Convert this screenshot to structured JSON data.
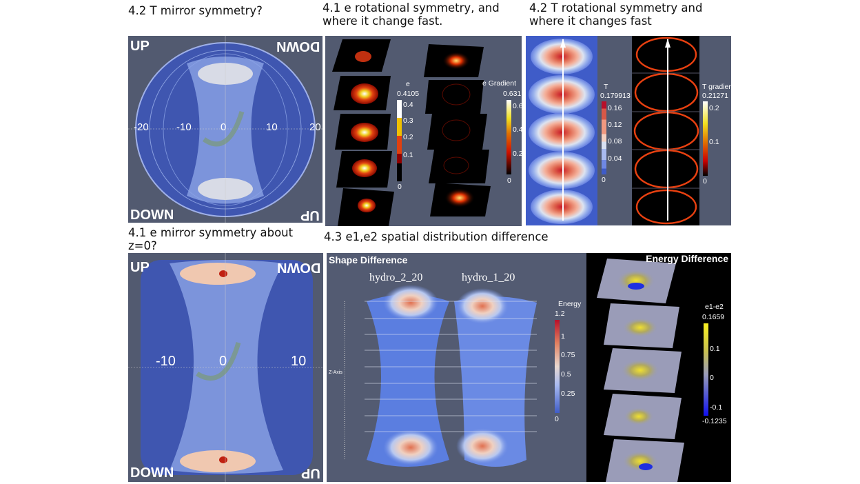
{
  "titles": {
    "t_mirror": "4.2 T mirror symmetry?",
    "e_rot": "4.1 e rotational symmetry, and where it change fast.",
    "t_rot": "4.2 T rotational symmetry and where it changes fast",
    "e_mirror": "4.1 e mirror symmetry about z=0?",
    "diff": "4.3 e1,e2 spatial distribution difference"
  },
  "t_mirror_panel": {
    "up": "UP",
    "down_mirrored": "DOWN",
    "down": "DOWN",
    "up_mirrored": "UP",
    "axis_ticks": [
      "-20",
      "-10",
      "0",
      "10",
      "20"
    ]
  },
  "e_rot_panel": {
    "e_bar": {
      "label": "e",
      "max": "0.4105",
      "ticks": [
        "0.4",
        "0.3",
        "0.2",
        "0.1",
        "0"
      ]
    },
    "grad_bar": {
      "label": "e Gradient",
      "max": "0.631",
      "ticks": [
        "0.6",
        "0.4",
        "0.2",
        "0"
      ]
    }
  },
  "t_rot_panel": {
    "t_bar": {
      "label": "T",
      "max": "0.179913",
      "ticks": [
        "0.16",
        "0.12",
        "0.08",
        "0.04",
        "0"
      ]
    },
    "grad_bar": {
      "label": "T gradient",
      "max": "0.21271",
      "ticks": [
        "0.2",
        "0.1",
        "0"
      ]
    }
  },
  "e_mirror_panel": {
    "up": "UP",
    "down_mirrored": "DOWN",
    "down": "DOWN",
    "up_mirrored": "UP",
    "axis_ticks": [
      "-10",
      "0",
      "10"
    ]
  },
  "shape_panel": {
    "heading": "Shape Difference",
    "left_label": "hydro_2_20",
    "right_label": "hydro_1_20",
    "axis_label": "Z-Axis",
    "bar": {
      "label": "Energy",
      "max": "1.2",
      "ticks": [
        "1",
        "0.75",
        "0.5",
        "0.25",
        "0"
      ]
    }
  },
  "energy_panel": {
    "heading": "Energy Difference",
    "bar": {
      "label": "e1-e2",
      "max": "0.1659",
      "ticks": [
        "0.1",
        "0",
        "-0.1"
      ],
      "min": "-0.1235"
    }
  }
}
